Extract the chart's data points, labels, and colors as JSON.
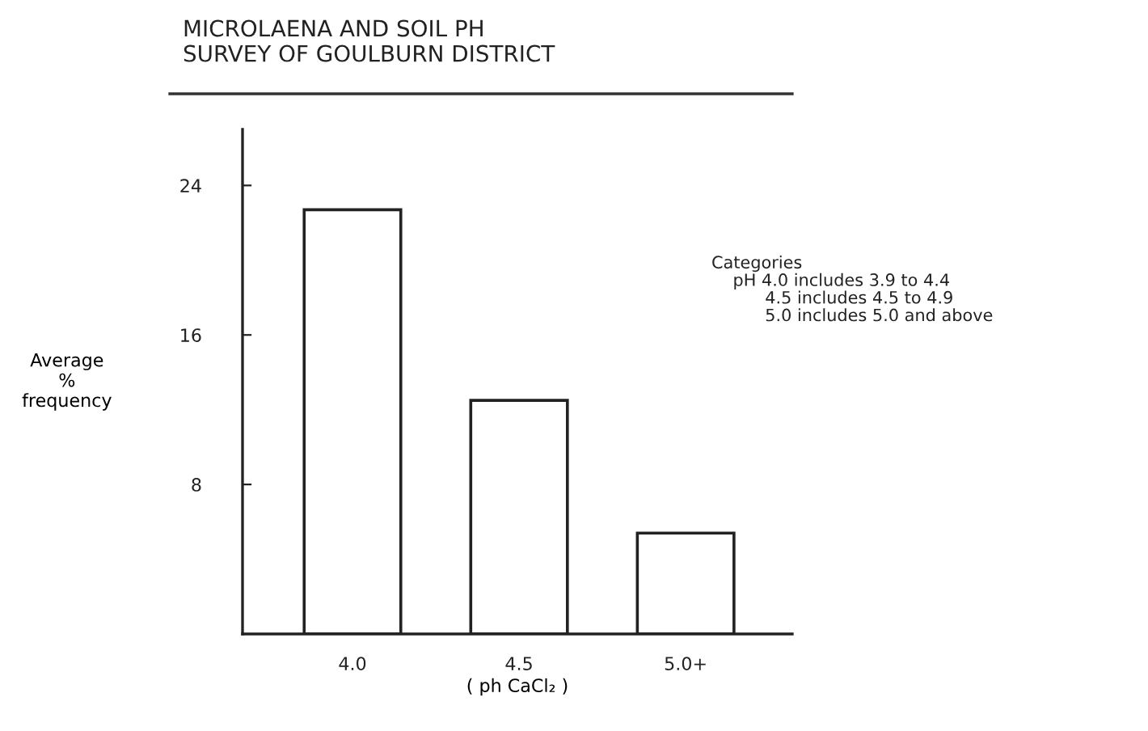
{
  "chart_data": {
    "type": "bar",
    "title": "MICROLAENA AND SOIL PH\nSURVEY OF GOULBURN DISTRICT",
    "xlabel": "( ph CaCl₂ )",
    "ylabel": "Average\n%\nfrequency",
    "categories": [
      "4.0",
      "4.5",
      "5.0+"
    ],
    "values": [
      22.7,
      12.5,
      5.4
    ],
    "color": "#ffffff",
    "ylim": [
      0,
      27
    ],
    "yticks": [
      8,
      16,
      24
    ],
    "grid": false,
    "annotations": [
      "Categories\n    pH 4.0 includes 3.9 to 4.4\n          4.5 includes 4.5 to 4.9\n          5.0 includes 5.0 and above"
    ]
  }
}
